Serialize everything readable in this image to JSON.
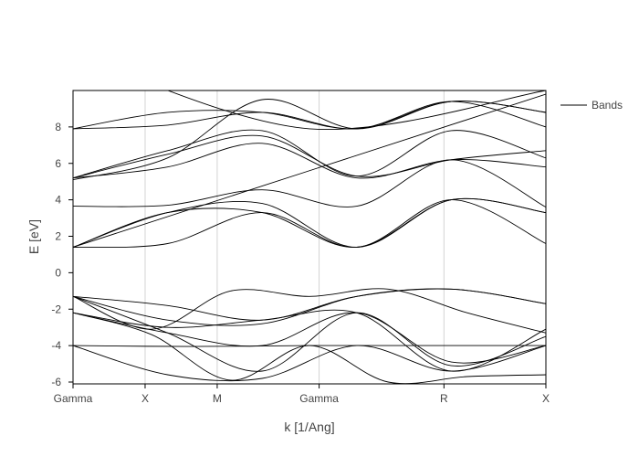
{
  "chart_data": {
    "type": "line",
    "title": "",
    "xlabel": "k [1/Ang]",
    "ylabel": "E [eV]",
    "x_ticks": [
      {
        "label": "Gamma",
        "x": 0.0
      },
      {
        "label": "X",
        "x": 0.5
      },
      {
        "label": "M",
        "x": 1.0
      },
      {
        "label": "Gamma",
        "x": 1.707
      },
      {
        "label": "R",
        "x": 2.573
      },
      {
        "label": "X",
        "x": 3.28
      }
    ],
    "xlim": [
      0,
      3.28
    ],
    "ylim": [
      -6.1,
      10.0
    ],
    "y_ticks": [
      -6,
      -4,
      -2,
      0,
      2,
      4,
      6,
      8
    ],
    "grid": "vertical at high-symmetry points",
    "legend": {
      "position": "top-right",
      "entries": [
        "Bands"
      ]
    },
    "series_style": {
      "color": "#000000"
    },
    "series": [
      {
        "name": "Bands",
        "y": [
          -4.0,
          -4.05,
          -4.0,
          -4.0,
          -4.0
        ]
      },
      {
        "name": "Bands",
        "y": [
          -4.0,
          -5.6,
          -5.8,
          -4.0,
          -5.4,
          -4.0
        ]
      },
      {
        "name": "Bands",
        "y": [
          -2.2,
          -3.3,
          -4.0,
          -2.2,
          -4.9,
          -4.0
        ]
      },
      {
        "name": "Bands",
        "y": [
          -2.2,
          -3.0,
          -2.6,
          -2.2,
          -5.4,
          -3.1
        ]
      },
      {
        "name": "Bands",
        "y": [
          -2.2,
          -3.4,
          -5.9,
          -4.0,
          -6.0,
          -5.7,
          -5.6
        ]
      },
      {
        "name": "Bands",
        "y": [
          -1.3,
          -1.8,
          -2.6,
          -1.3,
          -0.9,
          -1.7
        ]
      },
      {
        "name": "Bands",
        "y": [
          -1.3,
          -3.1,
          -1.0,
          -1.3,
          -0.9,
          -2.2,
          -3.3
        ]
      },
      {
        "name": "Bands",
        "y": [
          -1.3,
          -2.6,
          -2.8,
          -1.3,
          -0.9,
          -1.7
        ]
      },
      {
        "name": "Bands",
        "y": [
          -1.3,
          -3.3,
          -5.4,
          -2.2,
          -5.1,
          -3.5
        ]
      },
      {
        "name": "Bands",
        "y": [
          1.4,
          1.6,
          3.3,
          1.4,
          4.0,
          1.6
        ]
      },
      {
        "name": "Bands",
        "y": [
          1.4,
          3.3,
          3.3,
          1.4,
          4.0,
          3.3
        ]
      },
      {
        "name": "Bands",
        "y": [
          1.4,
          3.3,
          3.8,
          1.4,
          4.0,
          3.3
        ]
      },
      {
        "name": "Bands",
        "y": [
          3.65,
          3.7,
          4.55,
          3.65,
          6.2,
          3.6
        ]
      },
      {
        "name": "Bands",
        "y": [
          5.2,
          5.8,
          7.1,
          5.2,
          6.2,
          5.8
        ]
      },
      {
        "name": "Bands",
        "y": [
          5.2,
          6.5,
          7.5,
          5.3,
          6.2,
          6.7
        ]
      },
      {
        "name": "Bands",
        "y": [
          5.2,
          6.7,
          7.8,
          5.3,
          7.8,
          6.3
        ]
      },
      {
        "name": "Bands",
        "y": [
          5.1,
          6.3,
          9.5,
          7.9,
          9.4,
          8.8
        ]
      },
      {
        "name": "Bands",
        "y": [
          7.9,
          8.8,
          8.8,
          7.9,
          9.4,
          8.8
        ]
      },
      {
        "name": "Bands",
        "y": [
          7.9,
          8.1,
          8.8,
          7.9,
          9.4,
          8.0
        ]
      },
      {
        "name": "Bands",
        "y": [
          1.4,
          9.8
        ]
      },
      {
        "name": "Bands",
        "y": [
          12.0,
          7.9,
          10.0
        ]
      }
    ]
  }
}
